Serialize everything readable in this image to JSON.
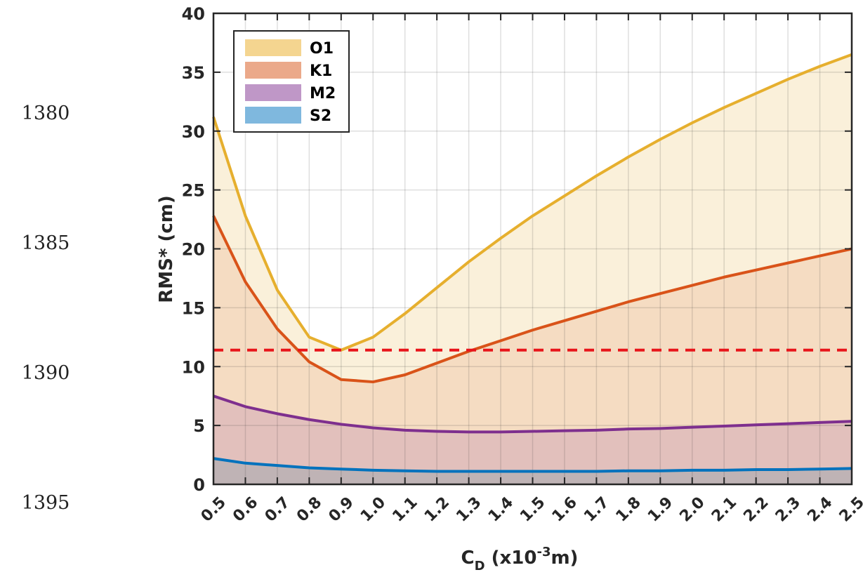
{
  "side_labels": [
    "1380",
    "1385",
    "1390",
    "1395"
  ],
  "chart_data": {
    "type": "area",
    "xlabel_main": "C",
    "xlabel_sub": "D",
    "xlabel_rest": " (x10",
    "xlabel_sup": "-3",
    "xlabel_end": "m)",
    "ylabel": "RMS* (cm)",
    "x": [
      0.5,
      0.6,
      0.7,
      0.8,
      0.9,
      1.0,
      1.1,
      1.2,
      1.3,
      1.4,
      1.5,
      1.6,
      1.7,
      1.8,
      1.9,
      2.0,
      2.1,
      2.2,
      2.3,
      2.4,
      2.5
    ],
    "x_tick_labels": [
      "0.5",
      "0.6",
      "0.7",
      "0.8",
      "0.9",
      "1.0",
      "1.1",
      "1.2",
      "1.3",
      "1.4",
      "1.5",
      "1.6",
      "1.7",
      "1.8",
      "1.9",
      "2.0",
      "2.1",
      "2.2",
      "2.3",
      "2.4",
      "2.5"
    ],
    "xlim": [
      0.5,
      2.5
    ],
    "ylim": [
      0,
      40
    ],
    "y_ticks": [
      0,
      5,
      10,
      15,
      20,
      25,
      30,
      35,
      40
    ],
    "grid": true,
    "legend_position": "top-left",
    "series": [
      {
        "name": "O1",
        "line_color": "#e6af2e",
        "legend_color": "#f4d590",
        "fill_color": "#faf0da",
        "values": [
          31.2,
          22.8,
          16.5,
          12.5,
          11.4,
          12.5,
          14.5,
          16.7,
          18.9,
          20.9,
          22.8,
          24.5,
          26.2,
          27.8,
          29.3,
          30.7,
          32.0,
          33.2,
          34.4,
          35.5,
          36.5
        ]
      },
      {
        "name": "K1",
        "line_color": "#d95319",
        "legend_color": "#eba98a",
        "fill_color": "#f5dcc2",
        "values": [
          22.8,
          17.2,
          13.2,
          10.4,
          8.9,
          8.7,
          9.3,
          10.3,
          11.3,
          12.2,
          13.1,
          13.9,
          14.7,
          15.5,
          16.2,
          16.9,
          17.6,
          18.2,
          18.8,
          19.4,
          20.0
        ]
      },
      {
        "name": "M2",
        "line_color": "#7e2f8e",
        "legend_color": "#bf97c7",
        "fill_color": "#e2c0bc",
        "values": [
          7.5,
          6.6,
          6.0,
          5.5,
          5.1,
          4.8,
          4.6,
          4.5,
          4.45,
          4.45,
          4.5,
          4.55,
          4.6,
          4.7,
          4.75,
          4.85,
          4.95,
          5.05,
          5.15,
          5.25,
          5.35
        ]
      },
      {
        "name": "S2",
        "line_color": "#0072bd",
        "legend_color": "#7fb8de",
        "fill_color": "#bfb3b5",
        "values": [
          2.2,
          1.8,
          1.6,
          1.4,
          1.3,
          1.2,
          1.15,
          1.1,
          1.1,
          1.1,
          1.1,
          1.1,
          1.1,
          1.15,
          1.15,
          1.2,
          1.2,
          1.25,
          1.25,
          1.3,
          1.35
        ]
      }
    ],
    "reference_line": {
      "y": 11.4,
      "color": "#e8151b",
      "style": "dashed"
    }
  }
}
